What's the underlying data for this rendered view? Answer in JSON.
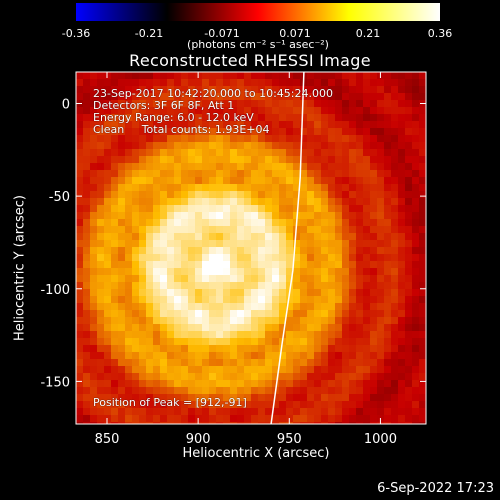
{
  "colorbar": {
    "tick_labels": [
      "-0.36",
      "-0.21",
      "-0.071",
      "0.071",
      "0.21",
      "0.36"
    ],
    "tick_values": [
      -0.36,
      -0.21,
      -0.071,
      0.071,
      0.21,
      0.36
    ],
    "range": [
      -0.36,
      0.36
    ],
    "units": "(photons cm⁻² s⁻¹ asec⁻²)",
    "colors": [
      "#0000ff",
      "#000000",
      "#ff0000",
      "#ffff00",
      "#ffffff"
    ]
  },
  "footer": {
    "date_text": "6-Sep-2022 17:23"
  },
  "chart_data": {
    "type": "heatmap",
    "title": "Reconstructed RHESSI Image",
    "xlabel": "Heliocentric X (arcsec)",
    "ylabel": "Heliocentric Y (arcsec)",
    "xlim": [
      833,
      1025
    ],
    "ylim": [
      -173,
      17
    ],
    "xticks": [
      850,
      900,
      950,
      1000
    ],
    "yticks": [
      0,
      -50,
      -100,
      -150
    ],
    "annotations": [
      "23-Sep-2017 10:42:20.000 to 10:45:24.000",
      "Detectors: 3F 6F 8F, Att 1",
      "Energy Range: 6.0 - 12.0 keV",
      "Clean     Total counts: 1.93E+04",
      "Position of Peak = [912,-91]"
    ],
    "peak": {
      "x": 912,
      "y": -91
    },
    "limb_line": {
      "color": "#ffffff",
      "points": [
        [
          958,
          17
        ],
        [
          956,
          -40
        ],
        [
          952,
          -90
        ],
        [
          946,
          -130
        ],
        [
          940,
          -173
        ]
      ]
    },
    "source": {
      "x": 910,
      "y": -88,
      "peak_value": 0.36
    }
  }
}
